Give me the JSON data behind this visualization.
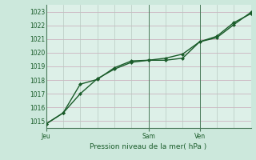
{
  "title": "",
  "xlabel": "Pression niveau de la mer( hPa )",
  "bg_color": "#cce8dc",
  "plot_bg_color": "#ddf0e8",
  "grid_color_h": "#c8a8b8",
  "grid_color_v": "#b8c8c0",
  "line_color": "#1a5c2a",
  "spine_color": "#4a7a5a",
  "ylim": [
    1014.5,
    1023.5
  ],
  "yticks": [
    1015,
    1016,
    1017,
    1018,
    1019,
    1020,
    1021,
    1022,
    1023
  ],
  "xlim": [
    0,
    24
  ],
  "day_labels": [
    "Jeu",
    "Sam",
    "Ven"
  ],
  "day_positions": [
    0,
    12,
    18
  ],
  "series1_x": [
    0,
    2,
    4,
    6,
    8,
    10,
    12,
    14,
    16,
    18,
    20,
    22,
    24
  ],
  "series1_y": [
    1014.8,
    1015.6,
    1017.0,
    1018.1,
    1018.8,
    1019.3,
    1019.45,
    1019.45,
    1019.6,
    1020.8,
    1021.2,
    1022.2,
    1022.85
  ],
  "series2_x": [
    0,
    2,
    4,
    6,
    8,
    10,
    12,
    14,
    16,
    18,
    20,
    22,
    24
  ],
  "series2_y": [
    1014.8,
    1015.6,
    1017.7,
    1018.05,
    1018.9,
    1019.4,
    1019.45,
    1019.6,
    1019.9,
    1020.8,
    1021.1,
    1022.05,
    1022.95
  ],
  "marker": "D",
  "marker_size": 2.5,
  "line_width": 1.0,
  "font_color": "#1a5c2a",
  "tick_fontsize": 5.5,
  "xlabel_fontsize": 6.5
}
